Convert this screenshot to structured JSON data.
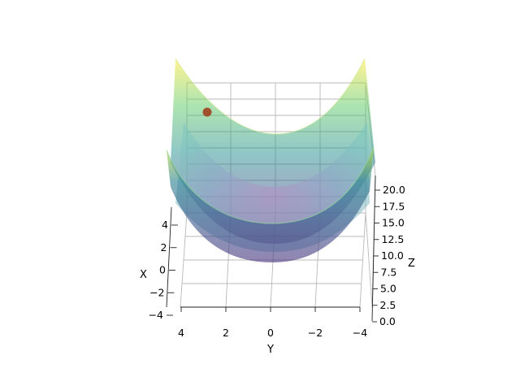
{
  "chart_data": {
    "type": "surface3d",
    "function": "z = x^2 / 2 + y^2 / 2",
    "x": {
      "label": "X",
      "range": [
        -4,
        4
      ],
      "ticks": [
        "−4",
        "−2",
        "0",
        "2",
        "4"
      ]
    },
    "y": {
      "label": "Y",
      "range": [
        -4,
        4
      ],
      "ticks": [
        "4",
        "2",
        "0",
        "−2",
        "−4"
      ]
    },
    "z": {
      "label": "Z",
      "range": [
        0,
        20
      ],
      "ticks": [
        "0.0",
        "2.5",
        "5.0",
        "7.5",
        "10.0",
        "12.5",
        "15.0",
        "17.5",
        "20.0"
      ]
    },
    "grid": true,
    "surface_colormap": "viridis",
    "surface_alpha": 0.5,
    "marked_point": {
      "x": 4,
      "y": 3,
      "z": 12.5,
      "color": "#a0522d"
    }
  }
}
